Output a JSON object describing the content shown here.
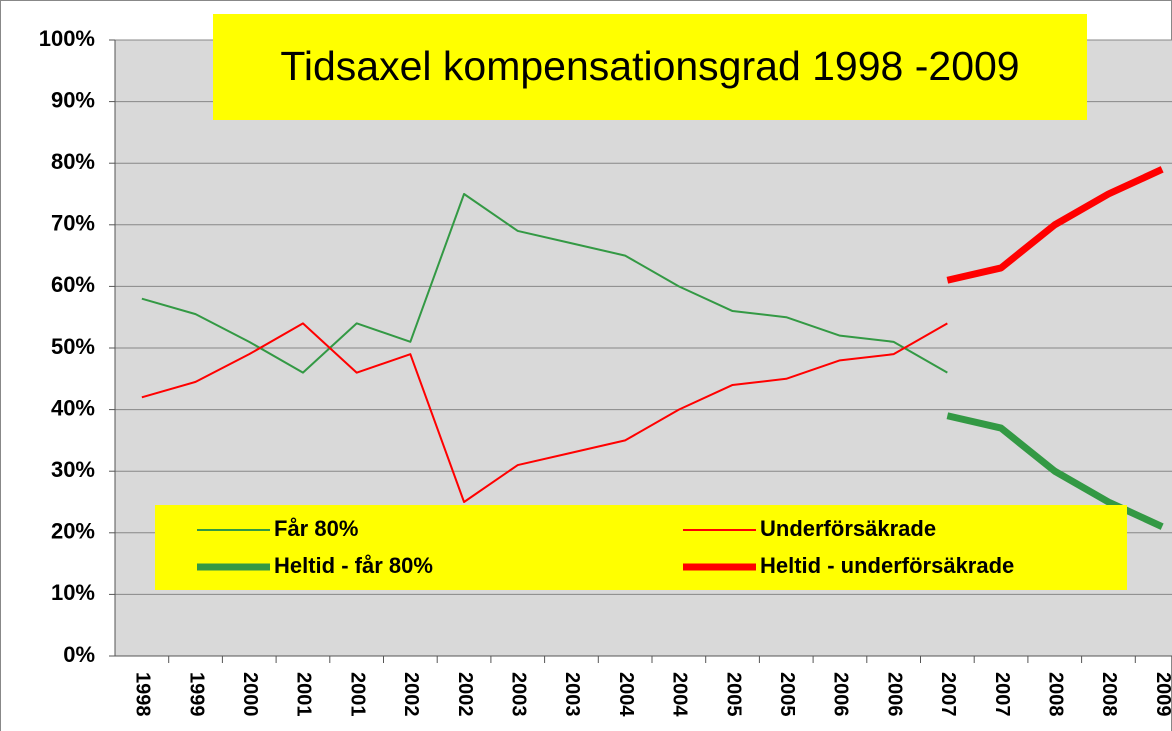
{
  "chart_data": {
    "type": "line",
    "title": "Tidsaxel kompensationsgrad 1998 -2009",
    "categories": [
      "1998",
      "1999",
      "2000",
      "2001",
      "2001",
      "2002",
      "2002",
      "2003",
      "2003",
      "2004",
      "2004",
      "2005",
      "2005",
      "2006",
      "2006",
      "2007",
      "2007",
      "2008",
      "2008",
      "2009"
    ],
    "series": [
      {
        "name": "Får 80%",
        "color": "#339944",
        "width": 2,
        "values": [
          58,
          55.5,
          51,
          46,
          54,
          51,
          75,
          69,
          67,
          65,
          60,
          56,
          55,
          52,
          51,
          46,
          null,
          null,
          null,
          null
        ]
      },
      {
        "name": "Underförsäkrade",
        "color": "#ff0000",
        "width": 2,
        "values": [
          42,
          44.5,
          49,
          54,
          46,
          49,
          25,
          31,
          33,
          35,
          40,
          44,
          45,
          48,
          49,
          54,
          null,
          null,
          null,
          null
        ]
      },
      {
        "name": "Heltid - får 80%",
        "color": "#339944",
        "width": 7,
        "values": [
          null,
          null,
          null,
          null,
          null,
          null,
          null,
          null,
          null,
          null,
          null,
          null,
          null,
          null,
          null,
          39,
          37,
          30,
          25,
          21
        ]
      },
      {
        "name": "Heltid - underförsäkrade",
        "color": "#ff0000",
        "width": 7,
        "values": [
          null,
          null,
          null,
          null,
          null,
          null,
          null,
          null,
          null,
          null,
          null,
          null,
          null,
          null,
          null,
          61,
          63,
          70,
          75,
          79
        ]
      }
    ],
    "ylim": [
      0,
      100
    ],
    "yticks": [
      {
        "value": 0,
        "label": "0%"
      },
      {
        "value": 10,
        "label": "10%"
      },
      {
        "value": 20,
        "label": "20%"
      },
      {
        "value": 30,
        "label": "30%"
      },
      {
        "value": 40,
        "label": "40%"
      },
      {
        "value": 50,
        "label": "50%"
      },
      {
        "value": 60,
        "label": "60%"
      },
      {
        "value": 70,
        "label": "70%"
      },
      {
        "value": 80,
        "label": "80%"
      },
      {
        "value": 90,
        "label": "90%"
      },
      {
        "value": 100,
        "label": "100%"
      }
    ],
    "grid": true,
    "legend": "bottom"
  }
}
